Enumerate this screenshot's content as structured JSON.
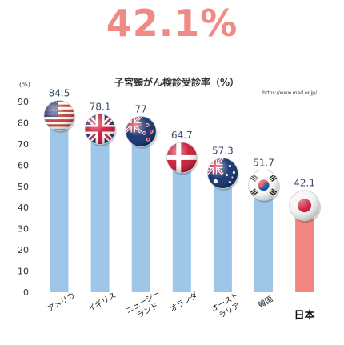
{
  "headline": "42.1%",
  "colors": {
    "bar": "#9dc6e8",
    "highlight_bar": "#f3857f",
    "headline": "#f08a84",
    "value_label": "#3c4b6e"
  },
  "chart_data": {
    "type": "bar",
    "title": "子宮頸がん検診受診率（%）",
    "source": "https://www.med.or.jp/",
    "y_unit": "(%)",
    "ylim": [
      0,
      90
    ],
    "yticks": [
      0,
      10,
      20,
      30,
      40,
      50,
      60,
      70,
      80,
      90
    ],
    "grid": false,
    "categories": [
      "アメリカ",
      "イギリス",
      "ニュージーランド",
      "オランダ",
      "オーストラリア",
      "韓国",
      "日本"
    ],
    "category_lines": [
      [
        "アメリカ"
      ],
      [
        "イギリス"
      ],
      [
        "ニュージー",
        "ランド"
      ],
      [
        "オランダ"
      ],
      [
        "オースト",
        "ラリア"
      ],
      [
        "韓国"
      ],
      [
        "日本"
      ]
    ],
    "values": [
      84.5,
      78.1,
      77,
      64.7,
      57.3,
      51.7,
      42.1
    ],
    "value_labels": [
      "84.5",
      "78.1",
      "77",
      "64.7",
      "57.3",
      "51.7",
      "42.1"
    ],
    "flags": [
      "us-flag-icon",
      "uk-flag-icon",
      "nz-flag-icon",
      "denmark-flag-icon",
      "australia-flag-icon",
      "korea-flag-icon",
      "japan-flag-icon"
    ],
    "highlight": "日本"
  }
}
